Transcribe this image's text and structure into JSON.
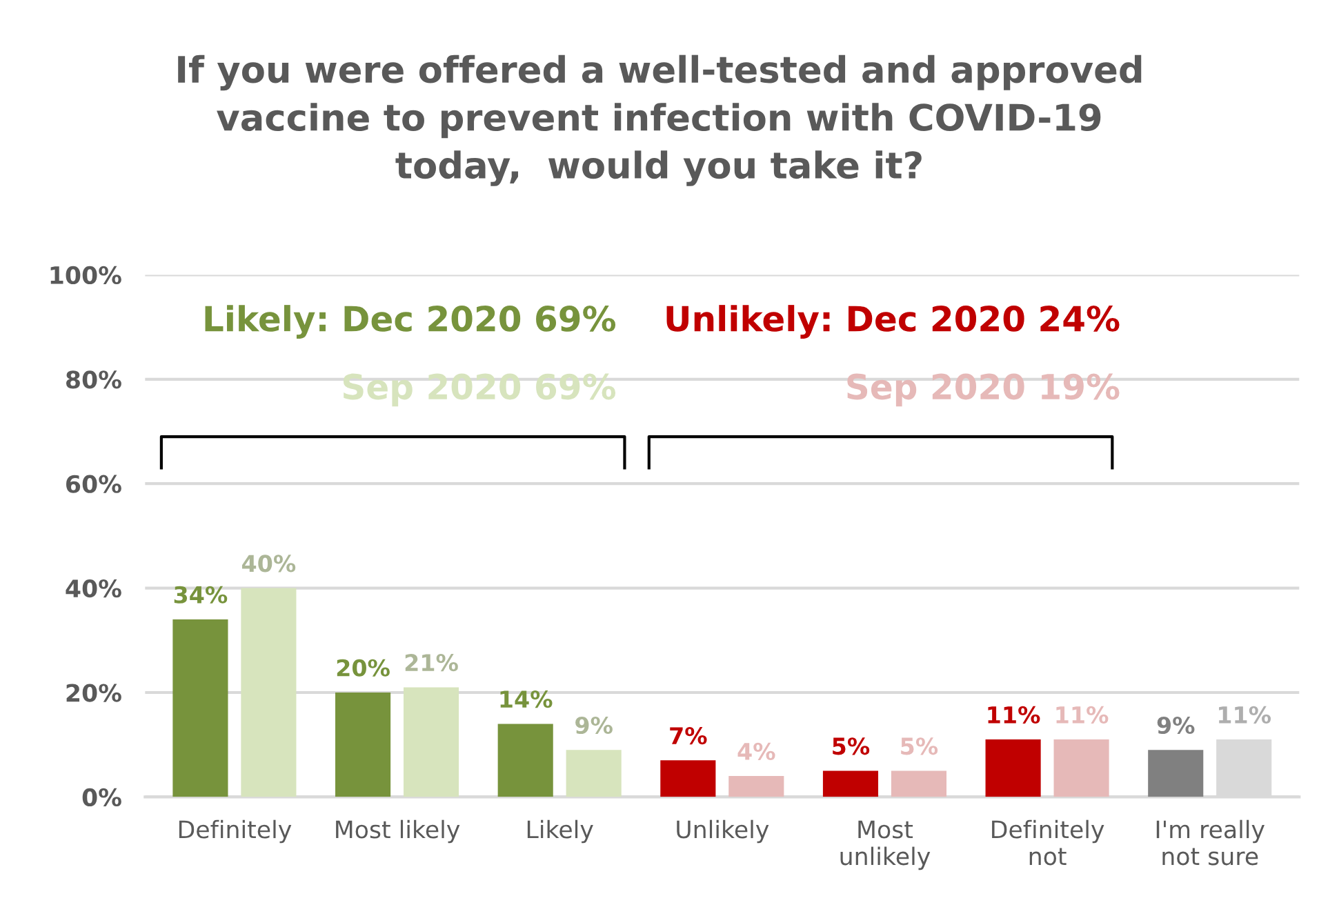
{
  "chart_data": {
    "type": "bar",
    "title": "If you were offered a well-tested and approved\nvaccine to prevent infection with COVID-19\ntoday,  would you take it?",
    "categories": [
      "Definitely",
      "Most likely",
      "Likely",
      "Unlikely",
      "Most\nunlikely",
      "Definitely\nnot",
      "I'm really\nnot sure"
    ],
    "series": [
      {
        "values": [
          34,
          20,
          14,
          7,
          5,
          11,
          9
        ],
        "colors": [
          "#77933c",
          "#77933c",
          "#77933c",
          "#c00000",
          "#c00000",
          "#c00000",
          "#808080"
        ],
        "value_labels": [
          "34%",
          "20%",
          "14%",
          "7%",
          "5%",
          "11%",
          "9%"
        ]
      },
      {
        "values": [
          40,
          21,
          9,
          4,
          5,
          11,
          11
        ],
        "colors": [
          "#d7e4bd",
          "#d7e4bd",
          "#d7e4bd",
          "#e6b9b8",
          "#e6b9b8",
          "#e6b9b8",
          "#d9d9d9"
        ],
        "value_labels": [
          "40%",
          "21%",
          "9%",
          "4%",
          "5%",
          "11%",
          "11%"
        ]
      }
    ],
    "ylim": [
      0,
      100
    ],
    "yticks": [
      {
        "value": 0,
        "label": "0%"
      },
      {
        "value": 20,
        "label": "20%"
      },
      {
        "value": 40,
        "label": "40%"
      },
      {
        "value": 60,
        "label": "60%"
      },
      {
        "value": 80,
        "label": "80%"
      },
      {
        "value": 100,
        "label": "100%"
      }
    ],
    "grid": "y",
    "annotations": [
      "Likely: Dec 2020 69%",
      "Sep 2020 69%",
      "Unlikely: Dec 2020 24%",
      "Sep 2020 19%"
    ]
  }
}
